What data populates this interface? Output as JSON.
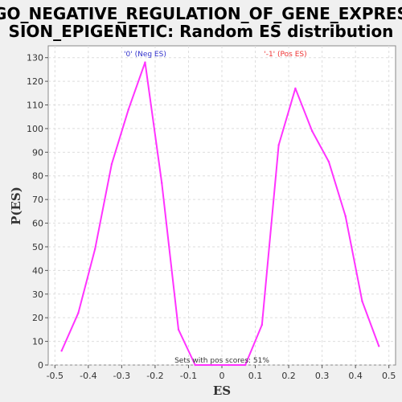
{
  "chart_data": {
    "type": "line",
    "title_line1": "GO_NEGATIVE_REGULATION_OF_GENE_EXPRES",
    "title_line2": "SION_EPIGENETIC: Random ES distribution",
    "xlabel": "ES",
    "ylabel": "P(ES)",
    "xlim": [
      -0.52,
      0.52
    ],
    "ylim": [
      0,
      135
    ],
    "x_ticks": [
      -0.5,
      -0.4,
      -0.3,
      -0.2,
      -0.1,
      0,
      0.1,
      0.2,
      0.3,
      0.4,
      0.5
    ],
    "x_tick_labels": [
      "-0.5",
      "-0.4",
      "-0.3",
      "-0.2",
      "-0.1",
      "0",
      "0.1",
      "0.2",
      "0.3",
      "0.4",
      "0.5"
    ],
    "y_ticks": [
      0,
      10,
      20,
      30,
      40,
      50,
      60,
      70,
      80,
      90,
      100,
      110,
      120,
      130
    ],
    "y_tick_labels": [
      "0",
      "10",
      "20",
      "30",
      "40",
      "50",
      "60",
      "70",
      "80",
      "90",
      "100",
      "110",
      "120",
      "130"
    ],
    "grid": true,
    "series": [
      {
        "color": "#ff33ff",
        "x": [
          -0.48,
          -0.43,
          -0.38,
          -0.33,
          -0.28,
          -0.23,
          -0.18,
          -0.13,
          -0.08,
          -0.03,
          0.02,
          0.07,
          0.12,
          0.17,
          0.22,
          0.27,
          0.32,
          0.37,
          0.42,
          0.47
        ],
        "y": [
          6,
          22,
          49,
          85,
          108,
          128,
          77,
          15,
          0,
          0,
          0,
          0,
          17,
          93,
          117,
          99,
          86,
          63,
          27,
          8
        ]
      }
    ],
    "annotations": {
      "neg_label": "'0' (Neg ES)",
      "neg_color": "#3333cc",
      "neg_x": -0.23,
      "pos_label": "'-1' (Pos ES)",
      "pos_color": "#ee3333",
      "pos_x": 0.19,
      "pos_scores_text": "Sets with pos scores: 51%"
    },
    "colors": {
      "plot_background": "#ffffff",
      "page_background": "#f0f0f0",
      "grid": "#dddddd",
      "axis": "#555555"
    }
  }
}
